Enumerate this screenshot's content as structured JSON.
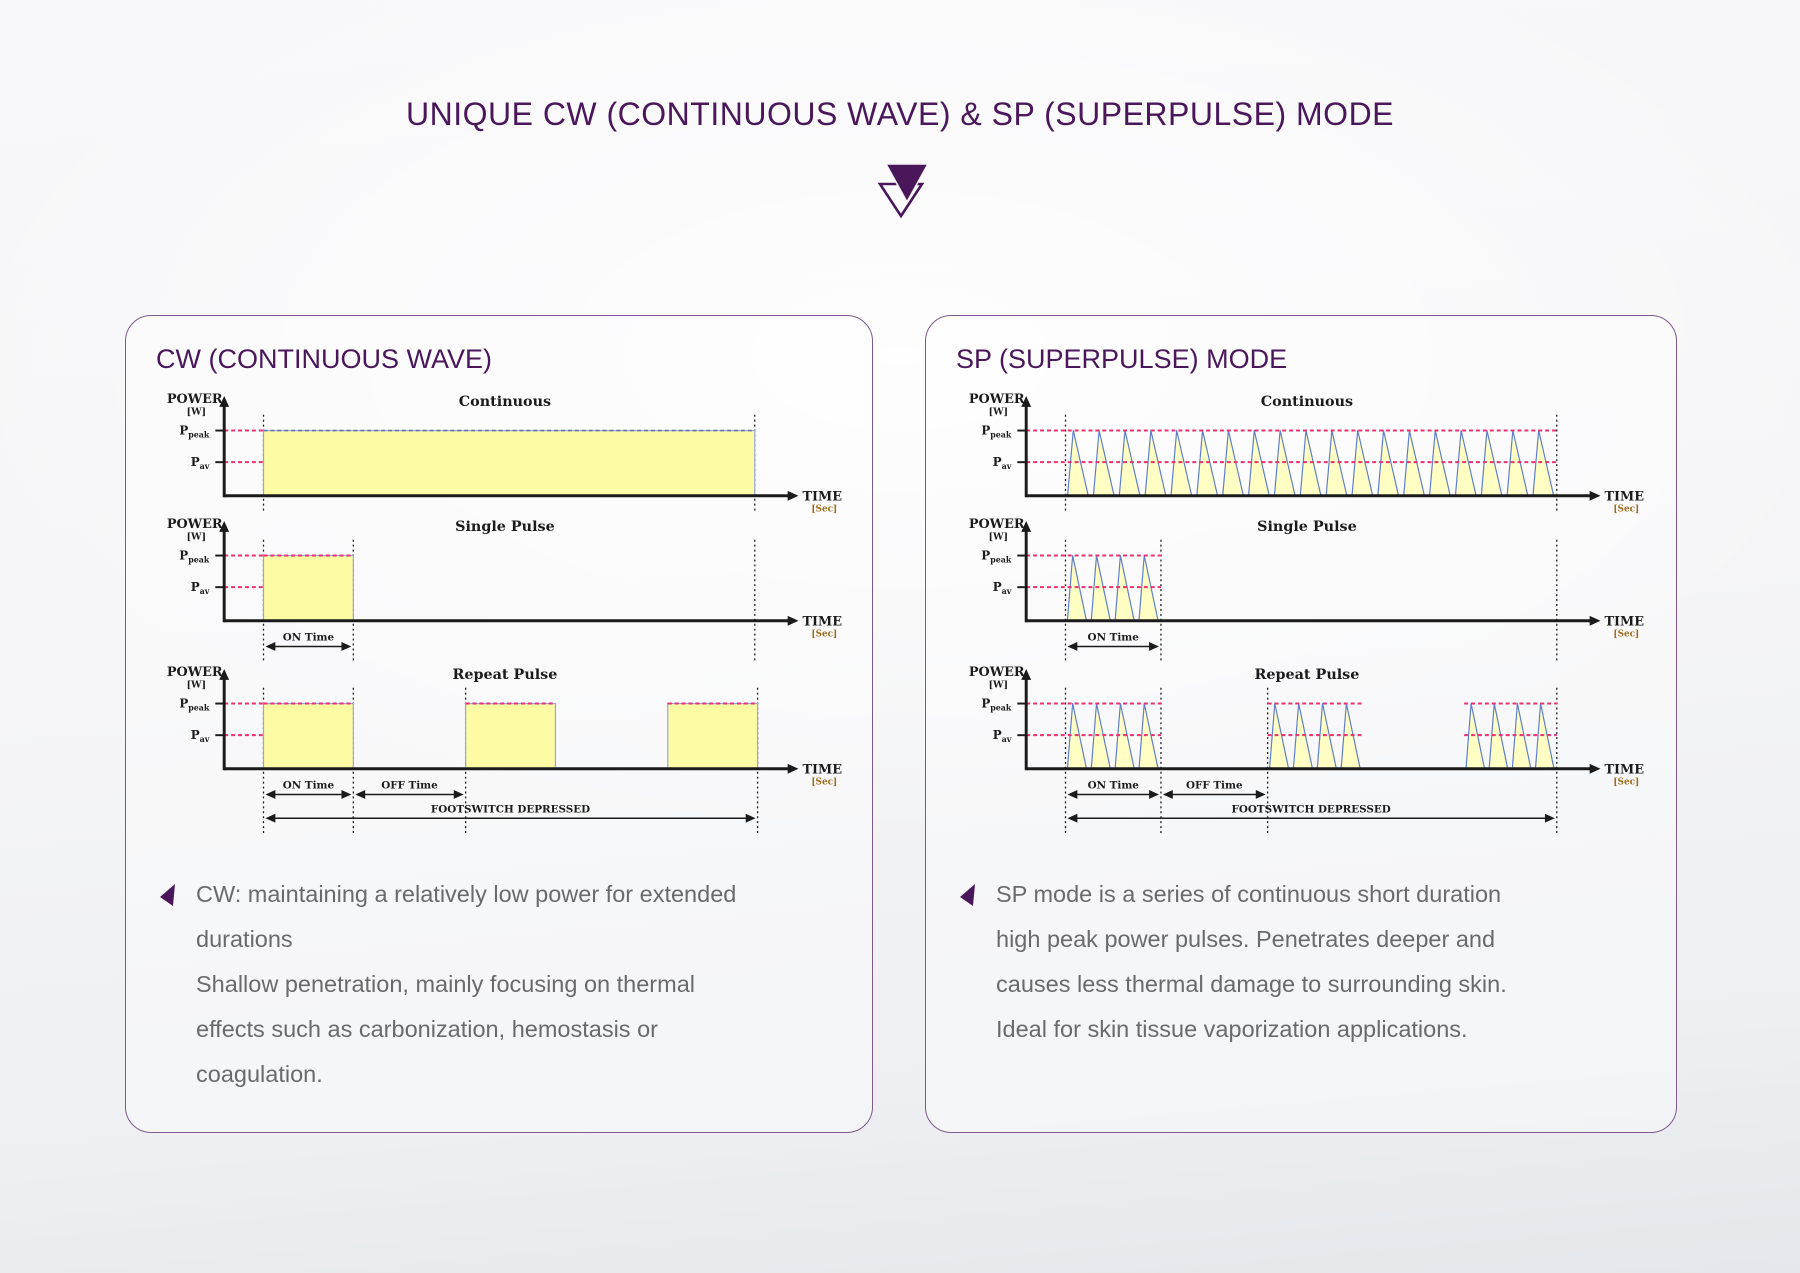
{
  "page": {
    "title": "UNIQUE CW (CONTINUOUS WAVE) & SP (SUPERPULSE) MODE",
    "colors": {
      "accent": "#4a175a",
      "panel_border": "#7c5a8c",
      "body_text": "#6a6a6a",
      "pulse_fill": "#fdfba4",
      "rect_stroke": "#9aa6d8",
      "rect_top_dash": "#6670b0",
      "spike_stroke": "#5f7ec7",
      "spike_fill": "#ffffc4",
      "dash_pink": "#e8316e",
      "axis": "#1b1b1b",
      "sec_label": "#9c6b1e"
    }
  },
  "panels": [
    {
      "heading": "CW (CONTINUOUS WAVE)",
      "notes": [
        "CW: maintaining a relatively low power for extended",
        "durations",
        "Shallow penetration, mainly focusing on thermal",
        "effects such as carbonization, hemostasis or",
        "coagulation."
      ]
    },
    {
      "heading": "SP (SUPERPULSE) MODE",
      "notes": [
        "SP mode is a series of continuous short duration",
        "high peak power pulses. Penetrates deeper and",
        "causes less thermal damage to surrounding skin.",
        "Ideal for skin tissue vaporization applications."
      ]
    }
  ],
  "chart_data": [
    {
      "type": "area",
      "title": "CW (CONTINUOUS WAVE)",
      "pulse_style": "rect",
      "ylabel": "POWER",
      "ylabel_units": "[W]",
      "xlabel": "TIME",
      "xlabel_units": "[Sec]",
      "levels": [
        {
          "label": "P",
          "sub": "peak"
        },
        {
          "label": "P",
          "sub": "av"
        }
      ],
      "subcharts": [
        {
          "title": "Continuous",
          "pulses": [
            [
              0.07,
              0.945
            ]
          ],
          "guides": [
            0.07,
            0.945
          ],
          "peak_dash_over_pulses": false,
          "annotations": []
        },
        {
          "title": "Single Pulse",
          "pulses": [
            [
              0.07,
              0.23
            ]
          ],
          "guides": [
            0.07,
            0.23,
            0.945
          ],
          "peak_dash_over_pulses": true,
          "annotations": [
            {
              "label": "ON Time",
              "from": 0.07,
              "to": 0.23,
              "row": 0
            }
          ]
        },
        {
          "title": "Repeat Pulse",
          "pulses": [
            [
              0.07,
              0.23
            ],
            [
              0.43,
              0.59
            ],
            [
              0.79,
              0.95
            ]
          ],
          "guides": [
            0.07,
            0.23,
            0.43,
            0.95
          ],
          "peak_dash_over_pulses": true,
          "annotations": [
            {
              "label": "ON Time",
              "from": 0.07,
              "to": 0.23,
              "row": 0
            },
            {
              "label": "OFF Time",
              "from": 0.23,
              "to": 0.43,
              "row": 0
            },
            {
              "label": "FOOTSWITCH DEPRESSED",
              "from": 0.07,
              "to": 0.95,
              "row": 1
            }
          ]
        }
      ]
    },
    {
      "type": "area",
      "title": "SP (SUPERPULSE) MODE",
      "pulse_style": "spike",
      "ylabel": "POWER",
      "ylabel_units": "[W]",
      "xlabel": "TIME",
      "xlabel_units": "[Sec]",
      "levels": [
        {
          "label": "P",
          "sub": "peak"
        },
        {
          "label": "P",
          "sub": "av"
        }
      ],
      "subcharts": [
        {
          "title": "Continuous",
          "pulses": [
            [
              0.07,
              0.945
            ]
          ],
          "spikes_per_pulse": 19,
          "guides": [
            0.07,
            0.945
          ],
          "annotations": []
        },
        {
          "title": "Single Pulse",
          "pulses": [
            [
              0.07,
              0.24
            ]
          ],
          "spikes_per_pulse": 4,
          "guides": [
            0.07,
            0.24,
            0.945
          ],
          "annotations": [
            {
              "label": "ON Time",
              "from": 0.07,
              "to": 0.24,
              "row": 0
            }
          ]
        },
        {
          "title": "Repeat Pulse",
          "pulses": [
            [
              0.07,
              0.24
            ],
            [
              0.43,
              0.6
            ],
            [
              0.78,
              0.945
            ]
          ],
          "spikes_per_pulse": 4,
          "guides": [
            0.07,
            0.24,
            0.43,
            0.945
          ],
          "annotations": [
            {
              "label": "ON Time",
              "from": 0.07,
              "to": 0.24,
              "row": 0
            },
            {
              "label": "OFF Time",
              "from": 0.24,
              "to": 0.43,
              "row": 0
            },
            {
              "label": "FOOTSWITCH DEPRESSED",
              "from": 0.07,
              "to": 0.945,
              "row": 1
            }
          ]
        }
      ]
    }
  ]
}
